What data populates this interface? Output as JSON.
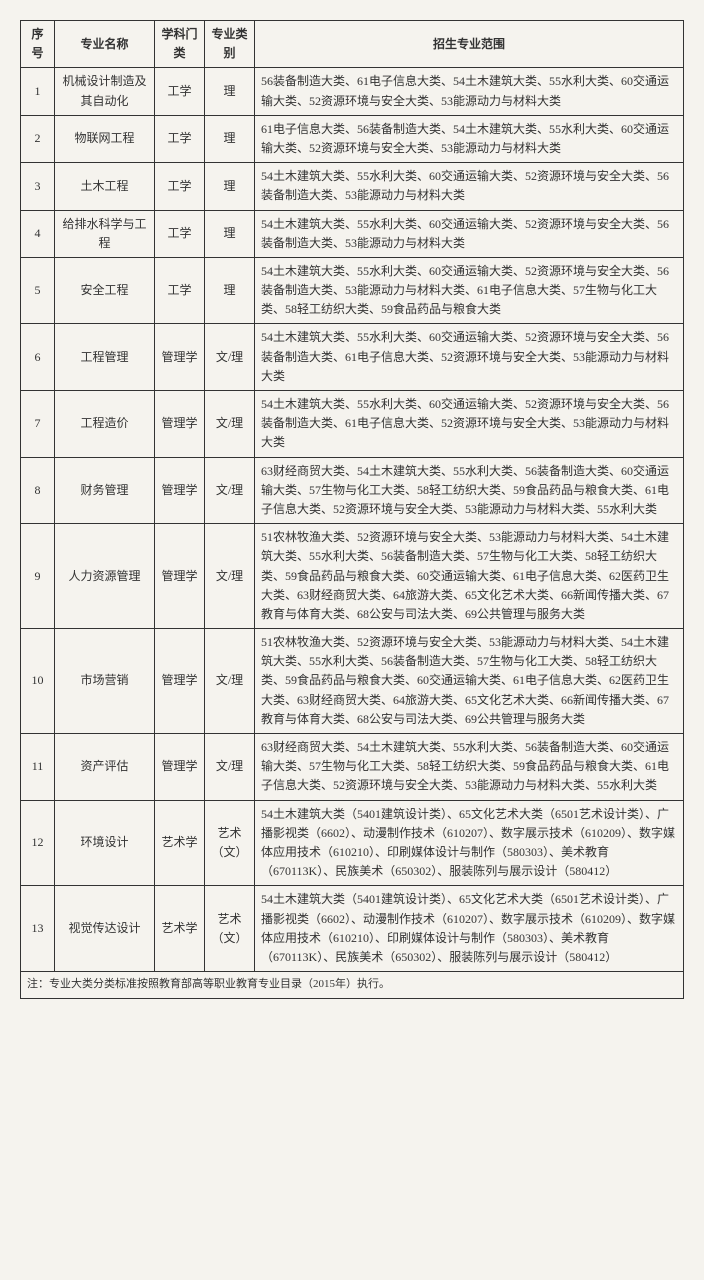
{
  "columns": [
    "序号",
    "专业名称",
    "学科门类",
    "专业类别",
    "招生专业范围"
  ],
  "rows": [
    {
      "num": "1",
      "name": "机械设计制造及其自动化",
      "disc": "工学",
      "cat": "理",
      "scope": "56装备制造大类、61电子信息大类、54土木建筑大类、55水利大类、60交通运输大类、52资源环境与安全大类、53能源动力与材料大类"
    },
    {
      "num": "2",
      "name": "物联网工程",
      "disc": "工学",
      "cat": "理",
      "scope": "61电子信息大类、56装备制造大类、54土木建筑大类、55水利大类、60交通运输大类、52资源环境与安全大类、53能源动力与材料大类"
    },
    {
      "num": "3",
      "name": "土木工程",
      "disc": "工学",
      "cat": "理",
      "scope": "54土木建筑大类、55水利大类、60交通运输大类、52资源环境与安全大类、56装备制造大类、53能源动力与材料大类"
    },
    {
      "num": "4",
      "name": "给排水科学与工程",
      "disc": "工学",
      "cat": "理",
      "scope": "54土木建筑大类、55水利大类、60交通运输大类、52资源环境与安全大类、56装备制造大类、53能源动力与材料大类"
    },
    {
      "num": "5",
      "name": "安全工程",
      "disc": "工学",
      "cat": "理",
      "scope": "54土木建筑大类、55水利大类、60交通运输大类、52资源环境与安全大类、56装备制造大类、53能源动力与材料大类、61电子信息大类、57生物与化工大类、58轻工纺织大类、59食品药品与粮食大类"
    },
    {
      "num": "6",
      "name": "工程管理",
      "disc": "管理学",
      "cat": "文/理",
      "scope": "54土木建筑大类、55水利大类、60交通运输大类、52资源环境与安全大类、56装备制造大类、61电子信息大类、52资源环境与安全大类、53能源动力与材料大类"
    },
    {
      "num": "7",
      "name": "工程造价",
      "disc": "管理学",
      "cat": "文/理",
      "scope": "54土木建筑大类、55水利大类、60交通运输大类、52资源环境与安全大类、56装备制造大类、61电子信息大类、52资源环境与安全大类、53能源动力与材料大类"
    },
    {
      "num": "8",
      "name": "财务管理",
      "disc": "管理学",
      "cat": "文/理",
      "scope": "63财经商贸大类、54土木建筑大类、55水利大类、56装备制造大类、60交通运输大类、57生物与化工大类、58轻工纺织大类、59食品药品与粮食大类、61电子信息大类、52资源环境与安全大类、53能源动力与材料大类、55水利大类"
    },
    {
      "num": "9",
      "name": "人力资源管理",
      "disc": "管理学",
      "cat": "文/理",
      "scope": "51农林牧渔大类、52资源环境与安全大类、53能源动力与材料大类、54土木建筑大类、55水利大类、56装备制造大类、57生物与化工大类、58轻工纺织大类、59食品药品与粮食大类、60交通运输大类、61电子信息大类、62医药卫生大类、63财经商贸大类、64旅游大类、65文化艺术大类、66新闻传播大类、67教育与体育大类、68公安与司法大类、69公共管理与服务大类"
    },
    {
      "num": "10",
      "name": "市场营销",
      "disc": "管理学",
      "cat": "文/理",
      "scope": "51农林牧渔大类、52资源环境与安全大类、53能源动力与材料大类、54土木建筑大类、55水利大类、56装备制造大类、57生物与化工大类、58轻工纺织大类、59食品药品与粮食大类、60交通运输大类、61电子信息大类、62医药卫生大类、63财经商贸大类、64旅游大类、65文化艺术大类、66新闻传播大类、67教育与体育大类、68公安与司法大类、69公共管理与服务大类"
    },
    {
      "num": "11",
      "name": "资产评估",
      "disc": "管理学",
      "cat": "文/理",
      "scope": "63财经商贸大类、54土木建筑大类、55水利大类、56装备制造大类、60交通运输大类、57生物与化工大类、58轻工纺织大类、59食品药品与粮食大类、61电子信息大类、52资源环境与安全大类、53能源动力与材料大类、55水利大类"
    },
    {
      "num": "12",
      "name": "环境设计",
      "disc": "艺术学",
      "cat": "艺术（文）",
      "scope": "54土木建筑大类（5401建筑设计类）、65文化艺术大类（6501艺术设计类）、广播影视类（6602）、动漫制作技术（610207）、数字展示技术（610209）、数字媒体应用技术（610210）、印刷媒体设计与制作（580303）、美术教育（670113K）、民族美术（650302）、服装陈列与展示设计（580412）"
    },
    {
      "num": "13",
      "name": "视觉传达设计",
      "disc": "艺术学",
      "cat": "艺术（文）",
      "scope": "54土木建筑大类（5401建筑设计类）、65文化艺术大类（6501艺术设计类）、广播影视类（6602）、动漫制作技术（610207）、数字展示技术（610209）、数字媒体应用技术（610210）、印刷媒体设计与制作（580303）、美术教育（670113K）、民族美术（650302）、服装陈列与展示设计（580412）"
    }
  ],
  "footnote": "注：专业大类分类标准按照教育部高等职业教育专业目录（2015年）执行。"
}
